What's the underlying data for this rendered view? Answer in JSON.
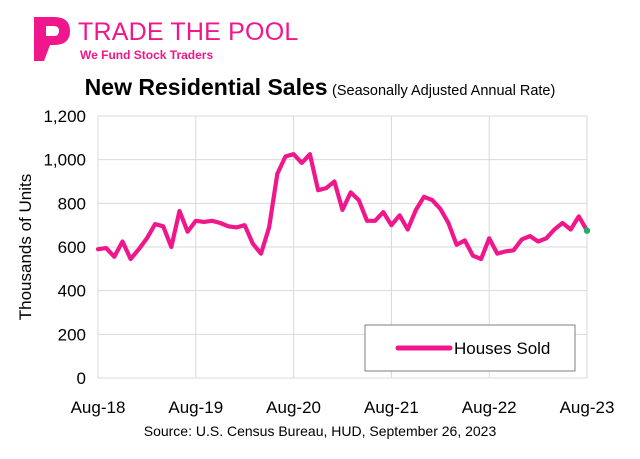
{
  "brand": {
    "name": "TRADE THE POOL",
    "tagline": "We Fund Stock Traders",
    "color": "#f0168b"
  },
  "chart_data": {
    "type": "line",
    "title": "New Residential Sales",
    "subtitle": "(Seasonally Adjusted Annual Rate)",
    "ylabel": "Thousands of Units",
    "xlabel": "",
    "ylim": [
      0,
      1200
    ],
    "yticks": [
      0,
      200,
      400,
      600,
      800,
      1000,
      1200
    ],
    "ytick_labels": [
      "0",
      "200",
      "400",
      "600",
      "800",
      "1,000",
      "1,200"
    ],
    "xtick_labels": [
      "Aug-18",
      "Aug-19",
      "Aug-20",
      "Aug-21",
      "Aug-22",
      "Aug-23"
    ],
    "xtick_months": [
      "2018-08",
      "2019-08",
      "2020-08",
      "2021-08",
      "2022-08",
      "2023-08"
    ],
    "grid": true,
    "legend_position": "bottom-right",
    "series": [
      {
        "name": "Houses Sold",
        "color": "#f0168b",
        "x": [
          "2018-08",
          "2018-09",
          "2018-10",
          "2018-11",
          "2018-12",
          "2019-01",
          "2019-02",
          "2019-03",
          "2019-04",
          "2019-05",
          "2019-06",
          "2019-07",
          "2019-08",
          "2019-09",
          "2019-10",
          "2019-11",
          "2019-12",
          "2020-01",
          "2020-02",
          "2020-03",
          "2020-04",
          "2020-05",
          "2020-06",
          "2020-07",
          "2020-08",
          "2020-09",
          "2020-10",
          "2020-11",
          "2020-12",
          "2021-01",
          "2021-02",
          "2021-03",
          "2021-04",
          "2021-05",
          "2021-06",
          "2021-07",
          "2021-08",
          "2021-09",
          "2021-10",
          "2021-11",
          "2021-12",
          "2022-01",
          "2022-02",
          "2022-03",
          "2022-04",
          "2022-05",
          "2022-06",
          "2022-07",
          "2022-08",
          "2022-09",
          "2022-10",
          "2022-11",
          "2022-12",
          "2023-01",
          "2023-02",
          "2023-03",
          "2023-04",
          "2023-05",
          "2023-06",
          "2023-07",
          "2023-08"
        ],
        "values": [
          590,
          595,
          555,
          625,
          545,
          590,
          640,
          705,
          695,
          600,
          765,
          670,
          720,
          715,
          720,
          710,
          695,
          690,
          700,
          615,
          570,
          690,
          935,
          1015,
          1025,
          985,
          1025,
          860,
          870,
          900,
          770,
          850,
          815,
          720,
          720,
          760,
          700,
          745,
          680,
          770,
          830,
          815,
          775,
          710,
          610,
          630,
          560,
          545,
          640,
          570,
          580,
          585,
          635,
          650,
          625,
          640,
          680,
          710,
          680,
          740,
          675
        ]
      }
    ]
  },
  "source": "Source:  U.S. Census Bureau, HUD, September 26, 2023"
}
